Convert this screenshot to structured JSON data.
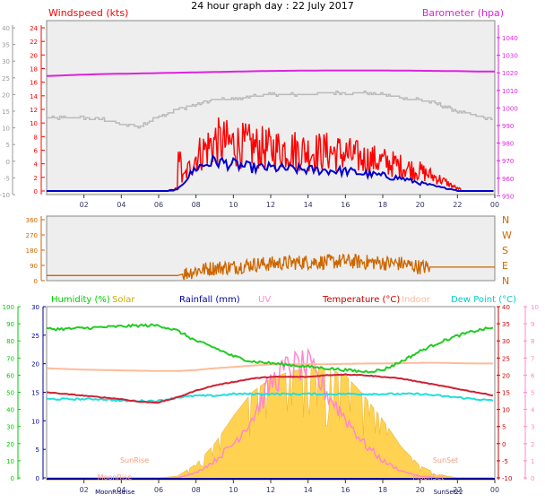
{
  "title": "24 hour graph day : 22 July 2017",
  "colors": {
    "windspeed": "#ff0000",
    "gust": "#0000cc",
    "barometer": "#dd22dd",
    "grey_axis": "#999999",
    "winddir": "#cc6600",
    "humidity": "#00cc00",
    "solar": "#ffcc33",
    "rainfall": "#000099",
    "uv": "#ff88cc",
    "temperature": "#cc0000",
    "indoor": "#ffbb99",
    "dewpoint": "#00dddd",
    "moon": "#ff9999",
    "axis_frame": "#888888",
    "chart_bg": "#eeeeee"
  },
  "chart_data": [
    {
      "type": "line",
      "name": "wind-barometer",
      "legend": {
        "windspeed": "Windspeed (kts)",
        "barometer": "Barometer (hpa)"
      },
      "x_ticks": [
        "02",
        "04",
        "06",
        "08",
        "10",
        "12",
        "14",
        "16",
        "18",
        "20",
        "22",
        "00"
      ],
      "left_grey_ticks": [
        "40",
        "35",
        "30",
        "25",
        "20",
        "15",
        "10",
        "5",
        "0",
        "-5",
        "-10"
      ],
      "left_red_ticks": [
        "24",
        "22",
        "20",
        "18",
        "16",
        "14",
        "12",
        "10",
        "8",
        "6",
        "4",
        "2",
        "0"
      ],
      "right_ticks": [
        "1040",
        "1030",
        "1020",
        "1010",
        "1000",
        "990",
        "980",
        "970",
        "960",
        "950"
      ],
      "x_hours": [
        0,
        1,
        2,
        3,
        4,
        5,
        6,
        7,
        8,
        9,
        10,
        11,
        12,
        13,
        14,
        15,
        16,
        17,
        18,
        19,
        20,
        21,
        22,
        23,
        24
      ],
      "barometer": [
        1018,
        1018.4,
        1018.8,
        1019.1,
        1019.3,
        1019.5,
        1019.7,
        1019.9,
        1020.1,
        1020.3,
        1020.5,
        1020.7,
        1020.9,
        1021,
        1021.1,
        1021.2,
        1021.2,
        1021.2,
        1021.2,
        1021.1,
        1021,
        1020.9,
        1020.8,
        1020.6,
        1020.6
      ],
      "grey_trace": [
        13,
        13,
        13,
        12.5,
        11,
        10.5,
        13.5,
        15.5,
        17,
        18.5,
        18.5,
        19.5,
        20,
        20,
        20,
        20.5,
        20.5,
        20.5,
        20,
        19,
        18.5,
        17,
        15,
        13.5,
        12.5
      ],
      "wind_avg_env": [
        0,
        0,
        0,
        0,
        0,
        0,
        0,
        0.2,
        3.5,
        4.5,
        4,
        3.5,
        3.5,
        3.3,
        3.2,
        3.1,
        3,
        2.6,
        2.3,
        1.9,
        1.2,
        0.6,
        0.1,
        0,
        0
      ],
      "wind_gust_env": [
        0,
        0,
        0,
        0,
        0,
        0,
        0,
        0.5,
        7,
        10,
        9.5,
        9,
        8.5,
        8.5,
        8,
        8,
        7.5,
        6.5,
        6,
        5,
        4,
        2.5,
        0.5,
        0,
        0
      ]
    },
    {
      "type": "line",
      "name": "wind-direction",
      "left_ticks": [
        "360",
        "270",
        "180",
        "90",
        "0"
      ],
      "right_ticks": [
        "N",
        "W",
        "S",
        "E",
        "N"
      ],
      "x_hours": [
        0,
        1,
        2,
        3,
        4,
        5,
        6,
        7,
        8,
        9,
        10,
        11,
        12,
        13,
        14,
        15,
        16,
        17,
        18,
        19,
        20,
        21,
        22,
        23,
        24
      ],
      "direction": [
        30,
        30,
        30,
        30,
        30,
        30,
        30,
        30,
        60,
        75,
        80,
        95,
        100,
        105,
        110,
        110,
        115,
        110,
        105,
        100,
        80,
        80,
        80,
        80,
        80
      ]
    },
    {
      "type": "line",
      "name": "temp-humidity",
      "legend": {
        "humidity": "Humidity (%)",
        "solar": "Solar",
        "rainfall": "Rainfall (mm)",
        "uv": "UV",
        "temperature": "Temperature (°C)",
        "indoor": "Indoor",
        "dewpoint": "Dew Point (°C)"
      },
      "left_green_ticks": [
        "100",
        "90",
        "80",
        "70",
        "60",
        "50",
        "40",
        "30",
        "20",
        "10",
        "0"
      ],
      "left_blue_ticks": [
        "30",
        "25",
        "20",
        "15",
        "10",
        "5",
        "0"
      ],
      "right_red_ticks": [
        "40",
        "35",
        "30",
        "25",
        "20",
        "15",
        "10",
        "5",
        "0",
        "-5",
        "-10"
      ],
      "right_uv_ticks": [
        "10",
        "9",
        "8",
        "7",
        "6",
        "5",
        "4",
        "3",
        "2",
        "1",
        "0"
      ],
      "x_ticks": [
        "02",
        "04",
        "06",
        "08",
        "10",
        "12",
        "14",
        "16",
        "18",
        "20",
        "22",
        "00"
      ],
      "x_hours": [
        0,
        1,
        2,
        3,
        4,
        5,
        6,
        7,
        8,
        9,
        10,
        11,
        12,
        13,
        14,
        15,
        16,
        17,
        18,
        19,
        20,
        21,
        22,
        23,
        24
      ],
      "humidity": [
        87,
        87,
        87.5,
        88,
        88.5,
        89,
        89,
        86,
        80,
        76,
        71,
        68,
        67,
        66,
        65,
        64,
        63,
        62,
        63,
        68,
        74,
        79,
        83,
        86,
        88
      ],
      "temperature": [
        15,
        14.5,
        14,
        13.5,
        13,
        12.2,
        12,
        13.5,
        15.5,
        17,
        18,
        19,
        19.5,
        19.5,
        19.5,
        20,
        20.2,
        20,
        19.5,
        19,
        18,
        17,
        16,
        15,
        14
      ],
      "dewpoint": [
        13,
        13,
        13,
        13,
        12.5,
        12.5,
        12.5,
        13.5,
        14,
        14,
        14.5,
        14.5,
        14.5,
        14.5,
        14.5,
        14.5,
        14.5,
        14.5,
        14.5,
        14.5,
        14.5,
        14,
        13.5,
        13,
        12.5
      ],
      "indoor": [
        22,
        21.8,
        21.6,
        21.5,
        21.4,
        21.3,
        21.2,
        21.2,
        21.5,
        22,
        22.4,
        22.8,
        23.1,
        23.2,
        23.2,
        23.2,
        23.3,
        23.4,
        23.4,
        23.5,
        23.6,
        23.6,
        23.5,
        23.4,
        23.4
      ],
      "solar_pct": [
        0,
        0,
        0,
        0,
        0,
        0,
        0,
        1,
        8,
        20,
        36,
        50,
        58,
        62,
        64,
        64,
        60,
        48,
        34,
        18,
        7,
        2,
        0,
        0,
        0
      ],
      "uv": [
        0,
        0,
        0,
        0,
        0,
        0,
        0,
        0,
        0.3,
        1,
        2,
        3.5,
        5.5,
        6.5,
        6.5,
        5,
        3.5,
        2,
        1,
        0.4,
        0.1,
        0,
        0,
        0,
        0
      ],
      "annotations": {
        "sunrise": "SunRise",
        "sunset": "SunSet",
        "moonrise": "MoonRise",
        "moonset": "MoonSet"
      },
      "bottom_labels": {
        "moonrise": "MoonRise",
        "sunrise": "rise",
        "sunset": "SunSet",
        "hour22": "22"
      }
    }
  ]
}
